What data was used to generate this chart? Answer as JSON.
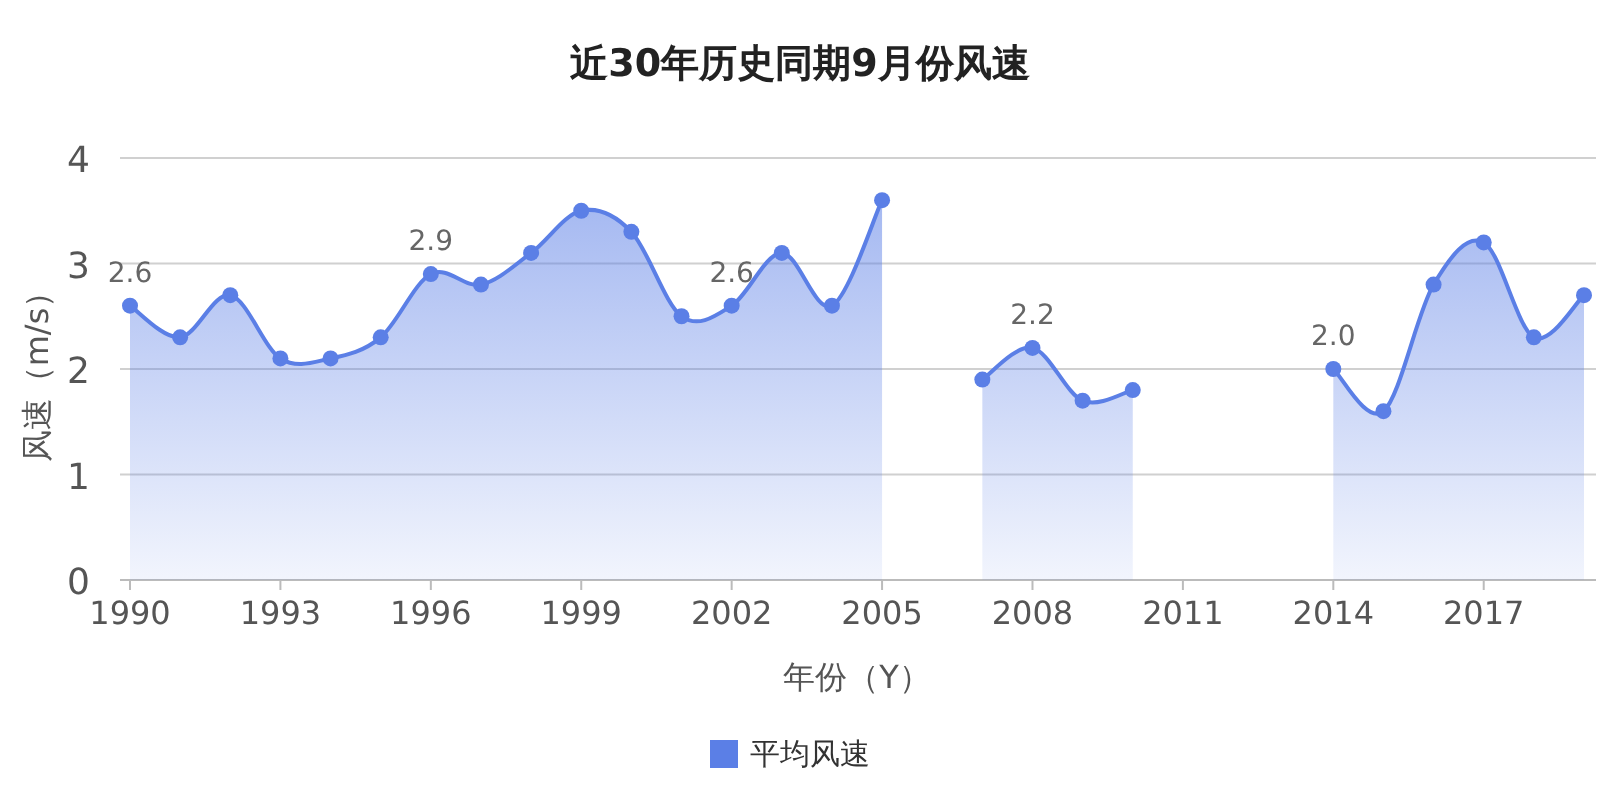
{
  "chart_data": {
    "type": "area",
    "title": "近30年历史同期9月份风速",
    "xlabel": "年份（Y）",
    "ylabel": "风速（m/s）",
    "categories": [
      "1990",
      null,
      null,
      "1993",
      null,
      null,
      "1996",
      null,
      null,
      "1999",
      null,
      null,
      "2002",
      null,
      null,
      "2005",
      null,
      null,
      "2008",
      null,
      null,
      "2011",
      null,
      null,
      "2014",
      null,
      null,
      "2017",
      null,
      null
    ],
    "series": [
      {
        "name": "平均风速",
        "color": "#5b7fe6",
        "values": [
          2.6,
          2.3,
          2.7,
          2.1,
          2.1,
          2.3,
          2.9,
          2.8,
          3.1,
          3.5,
          3.3,
          2.5,
          2.6,
          3.1,
          2.6,
          3.6,
          null,
          1.9,
          2.2,
          1.7,
          1.8,
          null,
          null,
          null,
          2.0,
          1.6,
          2.8,
          3.2,
          2.3,
          2.7
        ],
        "value_labels": [
          "2.6",
          null,
          null,
          null,
          null,
          null,
          "2.9",
          null,
          null,
          null,
          null,
          null,
          "2.6",
          null,
          null,
          null,
          null,
          null,
          "2.2",
          null,
          null,
          null,
          null,
          null,
          "2.0",
          null,
          null,
          null,
          null,
          null
        ]
      }
    ],
    "ylim": [
      0,
      4
    ],
    "yticks": [
      0,
      1,
      2,
      3,
      4
    ],
    "grid": "y",
    "legend": "bottom",
    "marker": "circle"
  }
}
